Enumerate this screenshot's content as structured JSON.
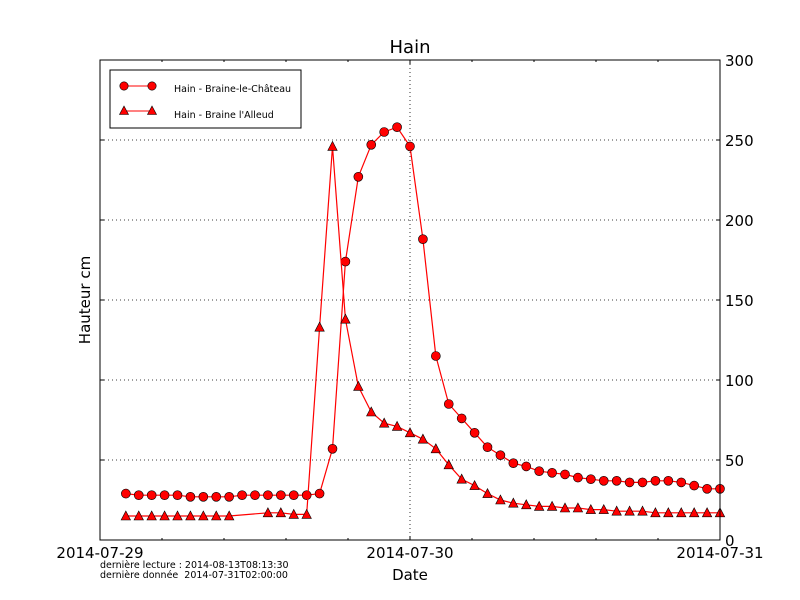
{
  "chart_data": {
    "type": "line",
    "title": "Hain",
    "xlabel": "Date",
    "ylabel": "Hauteur cm",
    "xlim": [
      "2014-07-29T00:00",
      "2014-07-31T00:00"
    ],
    "ylim": [
      0,
      300
    ],
    "x_ticks": [
      "2014-07-29",
      "2014-07-30",
      "2014-07-31"
    ],
    "y_ticks": [
      0,
      50,
      100,
      150,
      200,
      250,
      300
    ],
    "y_axis_side": "right",
    "grid": "dotted",
    "legend_position": "top-left",
    "color": "#ff0000",
    "series": [
      {
        "name": "Hain - Braine-le-Château",
        "marker": "circle",
        "x": [
          "2014-07-29T02:00",
          "2014-07-29T03:00",
          "2014-07-29T04:00",
          "2014-07-29T05:00",
          "2014-07-29T06:00",
          "2014-07-29T07:00",
          "2014-07-29T08:00",
          "2014-07-29T09:00",
          "2014-07-29T10:00",
          "2014-07-29T11:00",
          "2014-07-29T12:00",
          "2014-07-29T13:00",
          "2014-07-29T14:00",
          "2014-07-29T15:00",
          "2014-07-29T16:00",
          "2014-07-29T17:00",
          "2014-07-29T18:00",
          "2014-07-29T19:00",
          "2014-07-29T20:00",
          "2014-07-29T21:00",
          "2014-07-29T22:00",
          "2014-07-29T23:00",
          "2014-07-30T00:00",
          "2014-07-30T01:00",
          "2014-07-30T02:00",
          "2014-07-30T03:00",
          "2014-07-30T04:00",
          "2014-07-30T05:00",
          "2014-07-30T06:00",
          "2014-07-30T07:00",
          "2014-07-30T08:00",
          "2014-07-30T09:00",
          "2014-07-30T10:00",
          "2014-07-30T11:00",
          "2014-07-30T12:00",
          "2014-07-30T13:00",
          "2014-07-30T14:00",
          "2014-07-30T15:00",
          "2014-07-30T16:00",
          "2014-07-30T17:00",
          "2014-07-30T18:00",
          "2014-07-30T19:00",
          "2014-07-30T20:00",
          "2014-07-30T21:00",
          "2014-07-30T22:00",
          "2014-07-30T23:00",
          "2014-07-31T00:00"
        ],
        "values": [
          29,
          28,
          28,
          28,
          28,
          27,
          27,
          27,
          27,
          28,
          28,
          28,
          28,
          28,
          28,
          29,
          57,
          174,
          227,
          247,
          255,
          258,
          246,
          188,
          115,
          85,
          76,
          67,
          58,
          53,
          48,
          46,
          43,
          42,
          41,
          39,
          38,
          37,
          37,
          36,
          36,
          37,
          37,
          36,
          34,
          32,
          32
        ]
      },
      {
        "name": "Hain - Braine l'Alleud",
        "marker": "triangle",
        "x": [
          "2014-07-29T02:00",
          "2014-07-29T03:00",
          "2014-07-29T04:00",
          "2014-07-29T05:00",
          "2014-07-29T06:00",
          "2014-07-29T07:00",
          "2014-07-29T08:00",
          "2014-07-29T09:00",
          "2014-07-29T10:00",
          "2014-07-29T13:00",
          "2014-07-29T14:00",
          "2014-07-29T15:00",
          "2014-07-29T16:00",
          "2014-07-29T17:00",
          "2014-07-29T18:00",
          "2014-07-29T19:00",
          "2014-07-29T20:00",
          "2014-07-29T21:00",
          "2014-07-29T22:00",
          "2014-07-29T23:00",
          "2014-07-30T00:00",
          "2014-07-30T01:00",
          "2014-07-30T02:00",
          "2014-07-30T03:00",
          "2014-07-30T04:00",
          "2014-07-30T05:00",
          "2014-07-30T06:00",
          "2014-07-30T07:00",
          "2014-07-30T08:00",
          "2014-07-30T09:00",
          "2014-07-30T10:00",
          "2014-07-30T11:00",
          "2014-07-30T12:00",
          "2014-07-30T13:00",
          "2014-07-30T14:00",
          "2014-07-30T15:00",
          "2014-07-30T16:00",
          "2014-07-30T17:00",
          "2014-07-30T18:00",
          "2014-07-30T19:00",
          "2014-07-30T20:00",
          "2014-07-30T21:00",
          "2014-07-30T22:00",
          "2014-07-30T23:00",
          "2014-07-31T00:00"
        ],
        "values": [
          15,
          15,
          15,
          15,
          15,
          15,
          15,
          15,
          15,
          17,
          17,
          16,
          16,
          133,
          246,
          138,
          96,
          80,
          73,
          71,
          67,
          63,
          57,
          47,
          38,
          34,
          29,
          25,
          23,
          22,
          21,
          21,
          20,
          20,
          19,
          19,
          18,
          18,
          18,
          17,
          17,
          17,
          17,
          17,
          17
        ]
      }
    ]
  },
  "footer": {
    "last_read": "dernière lecture : 2014-08-13T08:13:30",
    "last_data": "dernière donnée  2014-07-31T02:00:00"
  }
}
